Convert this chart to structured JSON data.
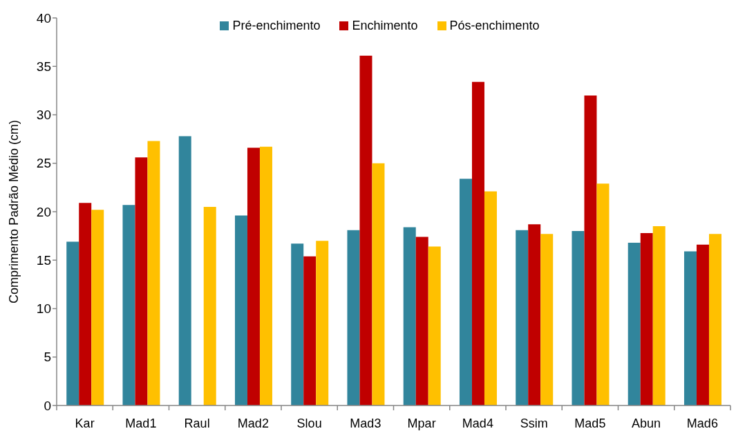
{
  "chart_data": {
    "type": "bar",
    "ylabel": "Comprimento Padrão Médio (cm)",
    "categories": [
      "Kar",
      "Mad1",
      "Raul",
      "Mad2",
      "Slou",
      "Mad3",
      "Mpar",
      "Mad4",
      "Ssim",
      "Mad5",
      "Abun",
      "Mad6"
    ],
    "series": [
      {
        "name": "Pré-enchimento",
        "color": "#31859c",
        "values": [
          16.9,
          20.7,
          27.8,
          19.6,
          16.7,
          18.1,
          18.4,
          23.4,
          18.1,
          18.0,
          16.8,
          15.9
        ]
      },
      {
        "name": "Enchimento",
        "color": "#c00000",
        "values": [
          20.9,
          25.6,
          null,
          26.6,
          15.4,
          36.1,
          17.4,
          33.4,
          18.7,
          32.0,
          17.8,
          16.6
        ]
      },
      {
        "name": "Pós-enchimento",
        "color": "#ffc000",
        "values": [
          20.2,
          27.3,
          20.5,
          26.7,
          17.0,
          25.0,
          16.4,
          22.1,
          17.7,
          22.9,
          18.5,
          17.7
        ]
      }
    ],
    "ylim": [
      0,
      40
    ],
    "yticks": [
      0,
      5,
      10,
      15,
      20,
      25,
      30,
      35,
      40
    ],
    "grid": false,
    "legend": "top"
  }
}
